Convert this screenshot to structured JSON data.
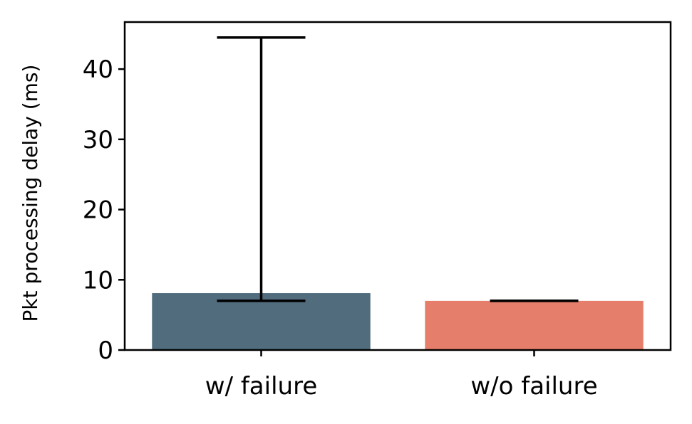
{
  "chart_data": {
    "type": "bar",
    "title": "",
    "xlabel": "",
    "ylabel": "Pkt processing delay (ms)",
    "categories": [
      "w/ failure",
      "w/o failure"
    ],
    "values": [
      8.1,
      7.0
    ],
    "error_low": [
      7.0,
      7.0
    ],
    "error_high": [
      44.5,
      7.0
    ],
    "colors": [
      "#516c7d",
      "#e57f6b"
    ],
    "ylim": [
      0,
      46.7
    ],
    "yticks": [
      0,
      10,
      20,
      30,
      40
    ],
    "grid": false,
    "legend": "none"
  }
}
